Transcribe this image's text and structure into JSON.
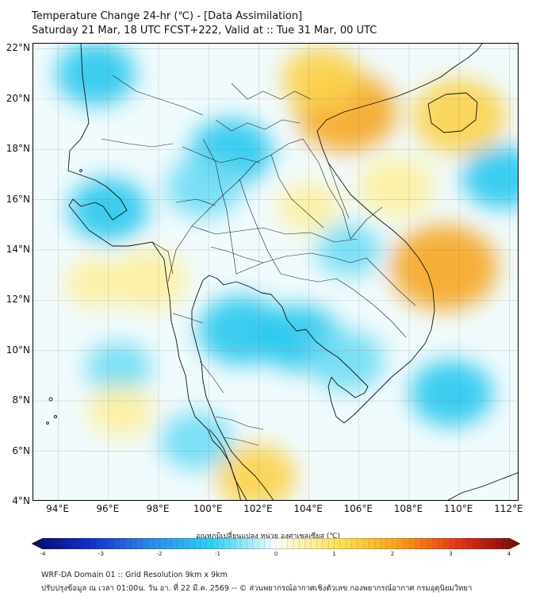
{
  "header": {
    "title": "Temperature Change 24-hr (℃) - [Data Assimilation]",
    "subtitle": "Saturday 21 Mar, 18 UTC FCST+222, Valid at :: Tue 31 Mar, 00 UTC"
  },
  "map": {
    "lat_labels": [
      "22°N",
      "20°N",
      "18°N",
      "16°N",
      "14°N",
      "12°N",
      "10°N",
      "8°N",
      "6°N",
      "4°N"
    ],
    "lon_labels": [
      "94°E",
      "96°E",
      "98°E",
      "100°E",
      "102°E",
      "104°E",
      "106°E",
      "108°E",
      "110°E",
      "112°E"
    ],
    "lat_range": [
      4,
      22.2
    ],
    "lon_range": [
      93,
      112.4
    ],
    "grid": true,
    "anomaly_blobs": [
      {
        "lon": 95.5,
        "lat": 21.0,
        "value": -1.0
      },
      {
        "lon": 100.9,
        "lat": 17.9,
        "value": -1.1
      },
      {
        "lon": 99.8,
        "lat": 16.5,
        "value": -0.9
      },
      {
        "lon": 96.0,
        "lat": 15.6,
        "value": -1.0
      },
      {
        "lon": 103.6,
        "lat": 10.5,
        "value": -1.1
      },
      {
        "lon": 101.3,
        "lat": 10.8,
        "value": -1.2
      },
      {
        "lon": 105.5,
        "lat": 9.6,
        "value": -0.9
      },
      {
        "lon": 109.7,
        "lat": 8.3,
        "value": -1.1
      },
      {
        "lon": 111.7,
        "lat": 16.9,
        "value": -1.0
      },
      {
        "lon": 96.4,
        "lat": 9.3,
        "value": -0.6
      },
      {
        "lon": 99.5,
        "lat": 6.4,
        "value": -0.8
      },
      {
        "lon": 105.6,
        "lat": 14.0,
        "value": -0.6
      },
      {
        "lon": 105.5,
        "lat": 19.5,
        "value": 1.6
      },
      {
        "lon": 109.4,
        "lat": 13.3,
        "value": 1.8
      },
      {
        "lon": 110.0,
        "lat": 19.3,
        "value": 1.4
      },
      {
        "lon": 104.5,
        "lat": 20.8,
        "value": 1.0
      },
      {
        "lon": 97.6,
        "lat": 12.8,
        "value": 0.9
      },
      {
        "lon": 101.9,
        "lat": 5.0,
        "value": 1.0
      },
      {
        "lon": 95.5,
        "lat": 12.7,
        "value": 0.5
      },
      {
        "lon": 96.5,
        "lat": 7.6,
        "value": 0.6
      },
      {
        "lon": 104.0,
        "lat": 15.7,
        "value": 0.5
      },
      {
        "lon": 107.5,
        "lat": 16.5,
        "value": 0.9
      }
    ]
  },
  "colorbar": {
    "title": "อุณหภูมิเปลี่ยนแปลง หน่วย องศาเซลเซียส (℃)",
    "ticks": [
      "-4",
      "-3",
      "-2",
      "-1",
      "0",
      "1",
      "2",
      "3",
      "4"
    ],
    "range": [
      -4,
      4
    ]
  },
  "footer": {
    "line1": "WRF-DA Domain 01 :: Grid Resolution 9km x 9km",
    "line2": "ปรับปรุงข้อมูล ณ เวลา 01:00น. วัน อา. ที่ 22 มี.ค. 2569 -- © ส่วนพยากรณ์อากาศเชิงตัวเลข กองพยากรณ์อากาศ กรมอุตุนิยมวิทยา"
  }
}
